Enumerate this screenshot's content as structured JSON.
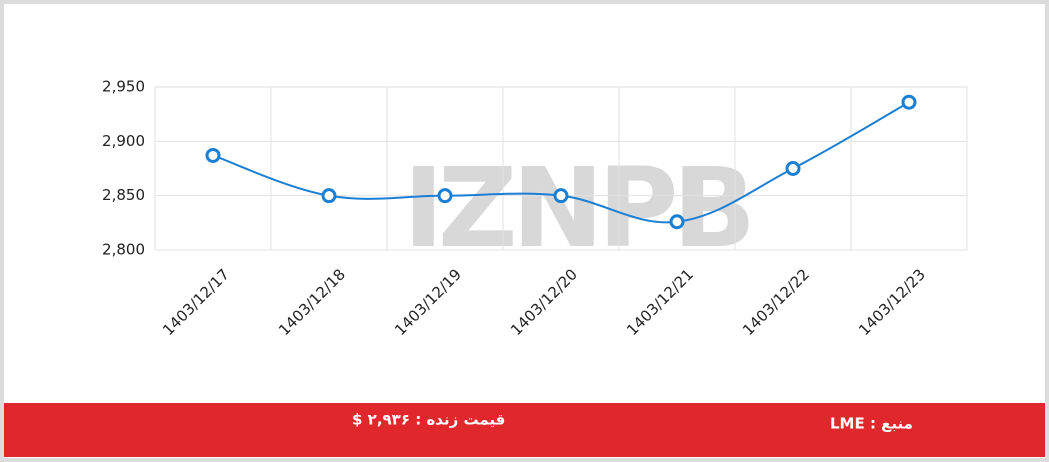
{
  "chart_data": {
    "type": "line",
    "categories": [
      "1403/12/17",
      "1403/12/18",
      "1403/12/19",
      "1403/12/20",
      "1403/12/21",
      "1403/12/22",
      "1403/12/23"
    ],
    "values": [
      2887,
      2850,
      2850,
      2850,
      2826,
      2875,
      2936
    ],
    "color": "#1b7fd4",
    "ylim": [
      2800,
      2950
    ],
    "yticks": [
      {
        "value": 2800,
        "label": "2,800"
      },
      {
        "value": 2850,
        "label": "2,850"
      },
      {
        "value": 2900,
        "label": "2,900"
      },
      {
        "value": 2950,
        "label": "2,950"
      }
    ],
    "grid": true,
    "watermark": "IZNPB"
  },
  "footer": {
    "source": "منبع : LME",
    "live_price": "قیمت زنده : ۲,۹۳۶ $"
  }
}
